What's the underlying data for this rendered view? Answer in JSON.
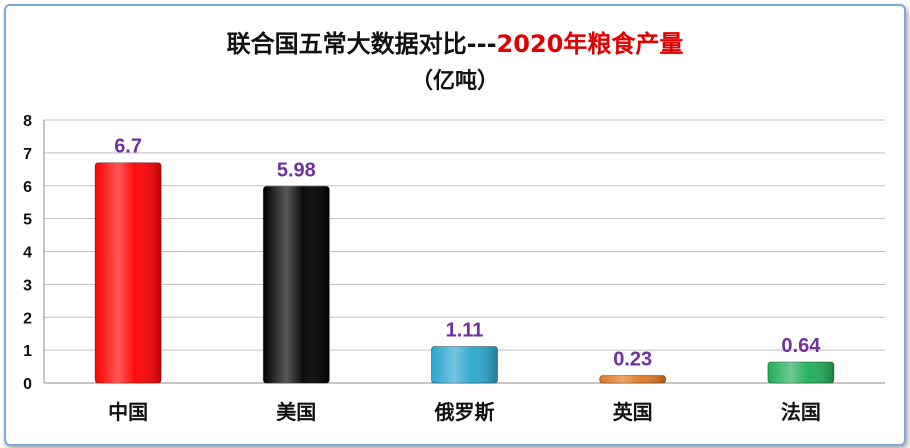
{
  "chart_data": {
    "type": "bar",
    "title_part1": "联合国五常大数据对比---",
    "title_part2": "2020年粮食产量",
    "subtitle": "（亿吨）",
    "categories": [
      "中国",
      "美国",
      "俄罗斯",
      "英国",
      "法国"
    ],
    "values": [
      6.7,
      5.98,
      1.11,
      0.23,
      0.64
    ],
    "data_labels": [
      "6.7",
      "5.98",
      "1.11",
      "0.23",
      "0.64"
    ],
    "bar_colors": [
      "#ff0000",
      "#000000",
      "#2aa6cf",
      "#e07820",
      "#1fae5a"
    ],
    "ylim": [
      0,
      8
    ],
    "yticks": [
      "0",
      "1",
      "2",
      "3",
      "4",
      "5",
      "6",
      "7",
      "8"
    ],
    "grid": true,
    "legend": "none",
    "title_color": "#111111",
    "title_highlight_color": "#e00000",
    "data_label_color": "#7030a0"
  }
}
